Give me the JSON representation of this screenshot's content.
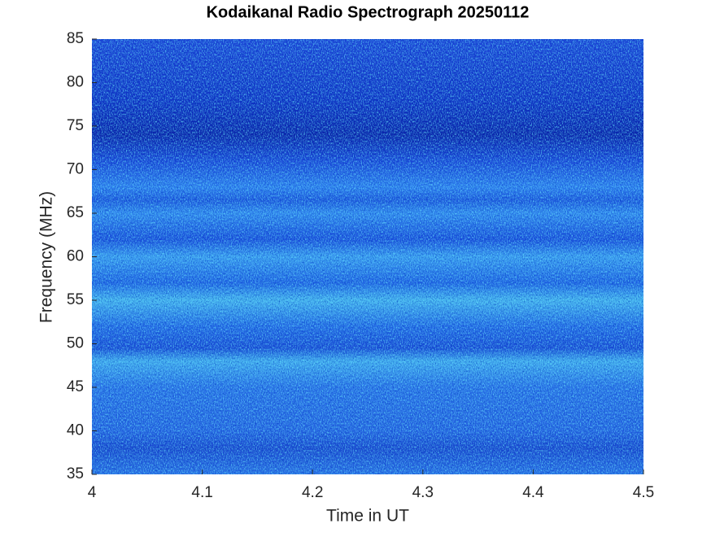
{
  "chart_data": {
    "type": "spectrogram",
    "title": "Kodaikanal Radio Spectrograph  20250112",
    "x_label": "Time in UT",
    "y_label": "Frequency (MHz)",
    "xlim": [
      4,
      4.5
    ],
    "xticks": [
      4,
      4.1,
      4.2,
      4.3,
      4.4,
      4.5
    ],
    "ylim": [
      35,
      85
    ],
    "yticks": [
      35,
      40,
      45,
      50,
      55,
      60,
      65,
      70,
      75,
      80,
      85
    ]
  }
}
